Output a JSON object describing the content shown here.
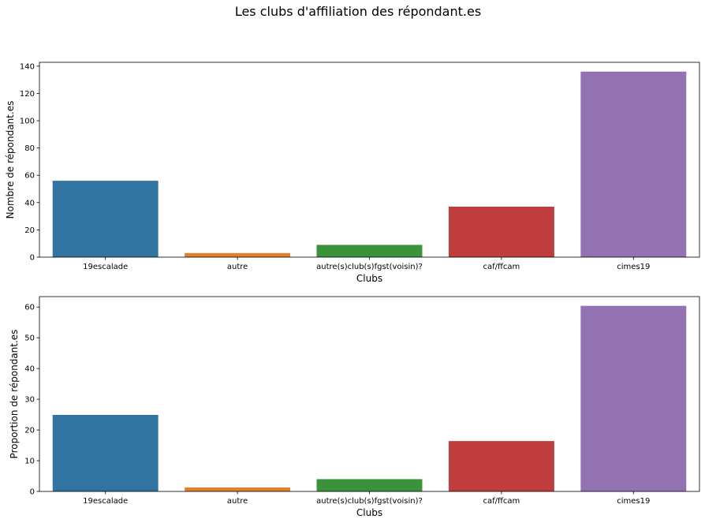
{
  "suptitle": "Les clubs d'affiliation des répondant.es",
  "chart_data": [
    {
      "type": "bar",
      "categories": [
        "19escalade",
        "autre",
        "autre(s)club(s)fgst(voisin)?",
        "caf/ffcam",
        "cimes19"
      ],
      "values": [
        56,
        3,
        9,
        37,
        136
      ],
      "colors": [
        "#3274a1",
        "#e1812c",
        "#3a923a",
        "#c03d3e",
        "#9372b2"
      ],
      "xlabel": "Clubs",
      "ylabel": "Nombre de répondant.es",
      "ylim": [
        0,
        142.8
      ],
      "yticks": [
        0,
        20,
        40,
        60,
        80,
        100,
        120,
        140
      ],
      "grid": false
    },
    {
      "type": "bar",
      "categories": [
        "19escalade",
        "autre",
        "autre(s)club(s)fgst(voisin)?",
        "caf/ffcam",
        "cimes19"
      ],
      "values": [
        24.9,
        1.3,
        4.0,
        16.4,
        60.4
      ],
      "colors": [
        "#3274a1",
        "#e1812c",
        "#3a923a",
        "#c03d3e",
        "#9372b2"
      ],
      "xlabel": "Clubs",
      "ylabel": "Proportion de répondant.es",
      "ylim": [
        0,
        63.4
      ],
      "yticks": [
        0,
        10,
        20,
        30,
        40,
        50,
        60
      ],
      "grid": false
    }
  ]
}
